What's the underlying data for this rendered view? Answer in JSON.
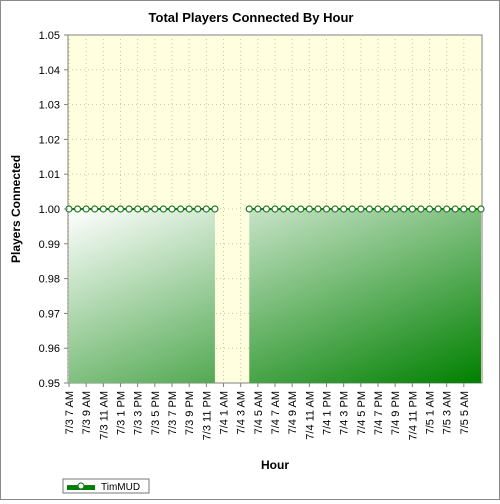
{
  "chart_data": {
    "type": "area",
    "title": "Total Players Connected By Hour",
    "xlabel": "Hour",
    "ylabel": "Players Connected",
    "ylim": [
      0.95,
      1.05
    ],
    "y_ticks": [
      "0.95",
      "0.96",
      "0.97",
      "0.98",
      "0.99",
      "1.00",
      "1.01",
      "1.02",
      "1.03",
      "1.04",
      "1.05"
    ],
    "x_tick_labels": [
      "7/3 7 AM",
      "7/3 9 AM",
      "7/3 11 AM",
      "7/3 1 PM",
      "7/3 3 PM",
      "7/3 5 PM",
      "7/3 7 PM",
      "7/3 9 PM",
      "7/3 11 PM",
      "7/4 1 AM",
      "7/4 3 AM",
      "7/4 5 AM",
      "7/4 7 AM",
      "7/4 9 AM",
      "7/4 11 AM",
      "7/4 1 PM",
      "7/4 3 PM",
      "7/4 5 PM",
      "7/4 7 PM",
      "7/4 9 PM",
      "7/4 11 PM",
      "7/5 1 AM",
      "7/5 3 AM",
      "7/5 5 AM"
    ],
    "series": [
      {
        "name": "TimMUD",
        "values": [
          1,
          1,
          1,
          1,
          1,
          1,
          1,
          1,
          1,
          1,
          1,
          1,
          1,
          1,
          1,
          1,
          1,
          1,
          null,
          null,
          null,
          1,
          1,
          1,
          1,
          1,
          1,
          1,
          1,
          1,
          1,
          1,
          1,
          1,
          1,
          1,
          1,
          1,
          1,
          1,
          1,
          1,
          1,
          1,
          1,
          1,
          1,
          1,
          1
        ]
      }
    ],
    "grid": true,
    "legend_position": "bottom-left",
    "colors": {
      "plot_background": "#ffffe0",
      "series_line": "#1f7a1f",
      "area_start": "#ffffff",
      "area_end": "#008000",
      "marker_fill": "#ffffff"
    }
  }
}
